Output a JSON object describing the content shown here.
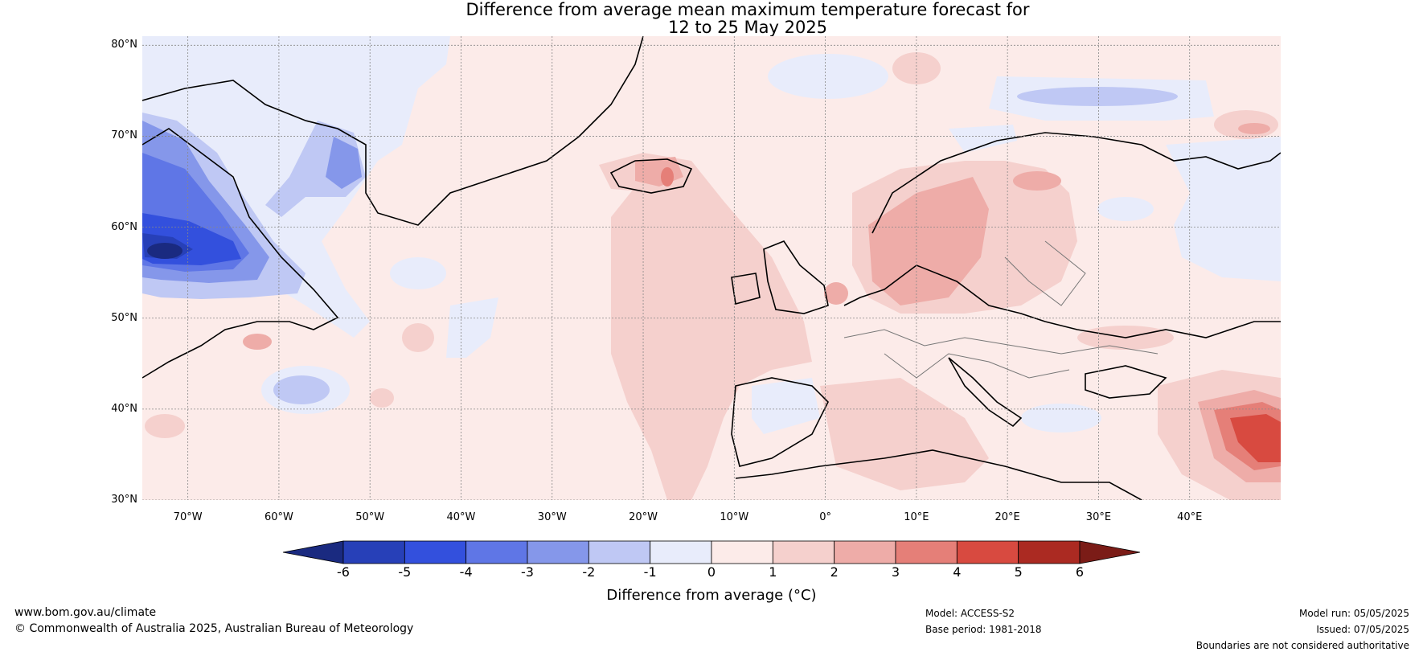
{
  "title": {
    "line1": "Difference from average mean maximum temperature forecast for",
    "line2": "12 to 25 May 2025"
  },
  "map": {
    "lat_labels": [
      "80°N",
      "70°N",
      "60°N",
      "50°N",
      "40°N",
      "30°N"
    ],
    "lon_labels": [
      "70°W",
      "60°W",
      "50°W",
      "40°W",
      "30°W",
      "20°W",
      "10°W",
      "0°",
      "10°E",
      "20°E",
      "30°E",
      "40°E"
    ],
    "lon_range": [
      -75,
      50
    ],
    "lat_range": [
      30,
      81
    ]
  },
  "colorbar": {
    "title": "Difference from average (°C)",
    "ticks": [
      "-6",
      "-5",
      "-4",
      "-3",
      "-2",
      "-1",
      "0",
      "1",
      "2",
      "3",
      "4",
      "5",
      "6"
    ],
    "colors": [
      "#1a2a80",
      "#2740b8",
      "#3350dd",
      "#5f76e6",
      "#8597ea",
      "#bfc8f4",
      "#e8ecfb",
      "#fcebe9",
      "#f5d0cd",
      "#eeaca8",
      "#e57f78",
      "#d84a40",
      "#ab2a22",
      "#7b1c17"
    ]
  },
  "footer": {
    "url": "www.bom.gov.au/climate",
    "copyright": "© Commonwealth of Australia 2025, Australian Bureau of Meteorology",
    "model": "Model: ACCESS-S2",
    "base_period": "Base period: 1981-2018",
    "model_run": "Model run: 05/05/2025",
    "issued": "Issued: 07/05/2025",
    "disclaimer": "Boundaries are not considered authoritative"
  }
}
